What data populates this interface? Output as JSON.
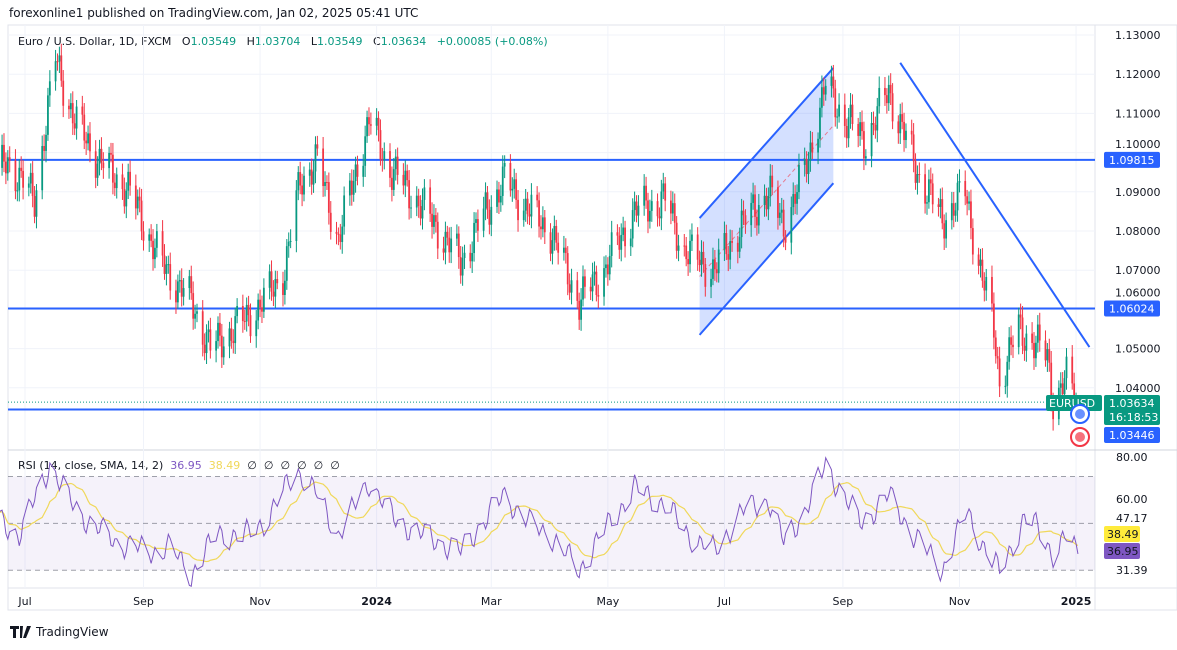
{
  "header": {
    "published": "forexonline1 published on TradingView.com, Jan 02, 2025 05:41 UTC"
  },
  "legend": {
    "symbol": "Euro / U.S. Dollar, 1D, FXCM",
    "open_label": "O",
    "open": "1.03549",
    "high_label": "H",
    "high": "1.03704",
    "low_label": "L",
    "low": "1.03549",
    "close_label": "C",
    "close": "1.03634",
    "change": "+0.00085 (+0.08%)"
  },
  "rsi_legend": {
    "title": "RSI (14, close, SMA, 14, 2)",
    "rsi": "36.95",
    "sma": "38.49",
    "empty": [
      "∅",
      "∅",
      "∅",
      "∅",
      "∅",
      "∅"
    ]
  },
  "footer": {
    "brand": "TradingView"
  },
  "colors": {
    "up": "#089981",
    "down": "#f23645",
    "lines": "#2962ff",
    "rsi": "#7e57c2",
    "rsi_sma": "#f0d85a",
    "channel_fill": "#2962ff"
  },
  "chart_data": [
    {
      "type": "candlestick",
      "symbol_badge": "EURUSD",
      "countdown": "16:18:53",
      "price_axis": {
        "ticks": [
          "1.13000",
          "1.12000",
          "1.11000",
          "1.10000",
          "1.09000",
          "1.08000",
          "1.07000",
          "1.06000",
          "1.05000",
          "1.04000"
        ],
        "ylim": [
          1.03,
          1.1325
        ]
      },
      "time_axis": {
        "ticks": [
          {
            "label": "Jul",
            "date": "2023-07-01"
          },
          {
            "label": "Sep",
            "date": "2023-09-01"
          },
          {
            "label": "Nov",
            "date": "2023-11-01"
          },
          {
            "label": "2024",
            "date": "2024-01-01"
          },
          {
            "label": "Mar",
            "date": "2024-03-01"
          },
          {
            "label": "May",
            "date": "2024-05-01"
          },
          {
            "label": "Jul",
            "date": "2024-07-01"
          },
          {
            "label": "Sep",
            "date": "2024-09-01"
          },
          {
            "label": "Nov",
            "date": "2024-11-01"
          },
          {
            "label": "2025",
            "date": "2025-01-01"
          }
        ]
      },
      "close_path": [
        [
          "2023-06-16",
          1.094
        ],
        [
          "2023-06-22",
          1.098
        ],
        [
          "2023-07-06",
          1.088
        ],
        [
          "2023-07-17",
          1.124
        ],
        [
          "2023-07-27",
          1.108
        ],
        [
          "2023-08-09",
          1.098
        ],
        [
          "2023-08-25",
          1.09
        ],
        [
          "2023-09-10",
          1.072
        ],
        [
          "2023-09-26",
          1.062
        ],
        [
          "2023-10-06",
          1.05
        ],
        [
          "2023-10-23",
          1.057
        ],
        [
          "2023-11-03",
          1.062
        ],
        [
          "2023-11-14",
          1.07
        ],
        [
          "2023-11-22",
          1.093
        ],
        [
          "2023-12-01",
          1.098
        ],
        [
          "2023-12-12",
          1.078
        ],
        [
          "2023-12-28",
          1.108
        ],
        [
          "2024-01-08",
          1.096
        ],
        [
          "2024-01-22",
          1.088
        ],
        [
          "2024-02-06",
          1.078
        ],
        [
          "2024-02-14",
          1.072
        ],
        [
          "2024-02-27",
          1.085
        ],
        [
          "2024-03-08",
          1.093
        ],
        [
          "2024-03-21",
          1.085
        ],
        [
          "2024-04-01",
          1.08
        ],
        [
          "2024-04-16",
          1.062
        ],
        [
          "2024-04-29",
          1.07
        ],
        [
          "2024-05-15",
          1.085
        ],
        [
          "2024-05-31",
          1.088
        ],
        [
          "2024-06-10",
          1.075
        ],
        [
          "2024-06-26",
          1.07
        ],
        [
          "2024-07-08",
          1.08
        ],
        [
          "2024-07-24",
          1.09
        ],
        [
          "2024-08-01",
          1.0815
        ],
        [
          "2024-08-12",
          1.095
        ],
        [
          "2024-08-23",
          1.117
        ],
        [
          "2024-09-03",
          1.108
        ],
        [
          "2024-09-13",
          1.103
        ],
        [
          "2024-09-25",
          1.116
        ],
        [
          "2024-10-02",
          1.106
        ],
        [
          "2024-10-10",
          1.095
        ],
        [
          "2024-10-23",
          1.083
        ],
        [
          "2024-11-04",
          1.09
        ],
        [
          "2024-11-12",
          1.07
        ],
        [
          "2024-11-19",
          1.055
        ],
        [
          "2024-11-22",
          1.042
        ],
        [
          "2024-12-02",
          1.055
        ],
        [
          "2024-12-09",
          1.052
        ],
        [
          "2024-12-17",
          1.048
        ],
        [
          "2024-12-20",
          1.037
        ],
        [
          "2024-12-27",
          1.042
        ],
        [
          "2025-01-02",
          1.03634
        ]
      ],
      "last_candle": {
        "date": "2025-01-02",
        "open": 1.03549,
        "high": 1.03704,
        "low": 1.03549,
        "close": 1.03634
      },
      "horizontal_levels": [
        {
          "price": 1.09815,
          "label": "1.09815"
        },
        {
          "price": 1.06024,
          "label": "1.06024"
        },
        {
          "price": 1.03446,
          "label": "1.03446"
        }
      ],
      "current_price": {
        "price": 1.03634,
        "label": "1.03634"
      },
      "channel": {
        "upper": [
          [
            "2024-06-18",
            1.0833
          ],
          [
            "2024-08-27",
            1.1216
          ]
        ],
        "lower": [
          [
            "2024-06-18",
            1.0535
          ],
          [
            "2024-08-27",
            1.0922
          ]
        ]
      },
      "descending_trendline": [
        [
          "2024-10-01",
          1.1229
        ],
        [
          "2025-01-08",
          1.0504
        ]
      ]
    },
    {
      "type": "line",
      "title": "RSI (14, close, SMA, 14, 2)",
      "axis_labels": [
        "80.00",
        "60.00",
        "47.17",
        "38.49",
        "36.95",
        "31.39"
      ],
      "bands": {
        "upper": 70,
        "middle": 50,
        "lower": 30
      },
      "rsi_path": [
        [
          "2023-06-16",
          52
        ],
        [
          "2023-06-28",
          45
        ],
        [
          "2023-07-14",
          75
        ],
        [
          "2023-07-24",
          60
        ],
        [
          "2023-08-04",
          50
        ],
        [
          "2023-08-18",
          42
        ],
        [
          "2023-09-05",
          38
        ],
        [
          "2023-09-15",
          40
        ],
        [
          "2023-09-26",
          28
        ],
        [
          "2023-10-10",
          46
        ],
        [
          "2023-10-23",
          44
        ],
        [
          "2023-11-05",
          52
        ],
        [
          "2023-11-20",
          73
        ],
        [
          "2023-12-01",
          62
        ],
        [
          "2023-12-12",
          45
        ],
        [
          "2023-12-28",
          68
        ],
        [
          "2024-01-10",
          52
        ],
        [
          "2024-01-25",
          45
        ],
        [
          "2024-02-14",
          38
        ],
        [
          "2024-02-27",
          52
        ],
        [
          "2024-03-08",
          62
        ],
        [
          "2024-03-21",
          50
        ],
        [
          "2024-04-01",
          45
        ],
        [
          "2024-04-16",
          30
        ],
        [
          "2024-04-30",
          48
        ],
        [
          "2024-05-15",
          65
        ],
        [
          "2024-05-31",
          58
        ],
        [
          "2024-06-12",
          45
        ],
        [
          "2024-06-26",
          38
        ],
        [
          "2024-07-10",
          55
        ],
        [
          "2024-07-24",
          60
        ],
        [
          "2024-08-01",
          42
        ],
        [
          "2024-08-12",
          55
        ],
        [
          "2024-08-23",
          75
        ],
        [
          "2024-09-10",
          50
        ],
        [
          "2024-09-25",
          62
        ],
        [
          "2024-10-08",
          45
        ],
        [
          "2024-10-23",
          30
        ],
        [
          "2024-11-05",
          55
        ],
        [
          "2024-11-15",
          38
        ],
        [
          "2024-11-22",
          29
        ],
        [
          "2024-12-05",
          52
        ],
        [
          "2024-12-12",
          48
        ],
        [
          "2024-12-20",
          37
        ],
        [
          "2024-12-27",
          44
        ],
        [
          "2025-01-02",
          36.95
        ]
      ],
      "rsi_last": 36.95,
      "sma_last": 38.49
    }
  ]
}
